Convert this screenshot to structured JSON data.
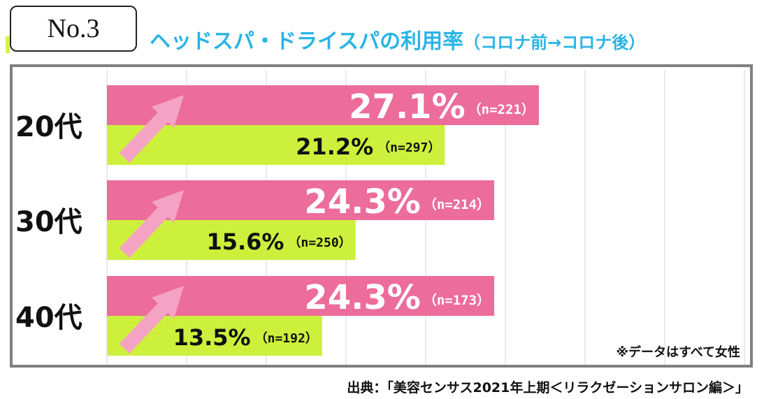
{
  "badge": "No.3",
  "title": {
    "main": "ヘッドスパ・ドライスパの利用率",
    "sub": "（コロナ前→コロナ後）"
  },
  "note": "※データはすべて女性",
  "source": "出典：「美容センサス2021年上期＜リラクゼーションサロン編＞」",
  "colors": {
    "after": "#ec6c9a",
    "before": "#cdf03c",
    "arrow": "#f4a3c4",
    "title": "#2ab4e6",
    "frame": "#808080"
  },
  "chart_data": {
    "type": "bar",
    "orientation": "horizontal",
    "categories": [
      "20代",
      "30代",
      "40代"
    ],
    "series": [
      {
        "values": [
          27.1,
          24.3,
          24.3
        ],
        "labels": [
          "27.1%",
          "24.3%",
          "24.3%"
        ],
        "n_labels": [
          "（n=221）",
          "（n=214）",
          "（n=173）"
        ],
        "color": "#ec6c9a"
      },
      {
        "values": [
          21.2,
          15.6,
          13.5
        ],
        "labels": [
          "21.2%",
          "15.6%",
          "13.5%"
        ],
        "n_labels": [
          "（n=297）",
          "（n=250）",
          "（n=192）"
        ],
        "color": "#cdf03c"
      }
    ],
    "xlim": [
      0,
      40
    ],
    "grid": true
  }
}
